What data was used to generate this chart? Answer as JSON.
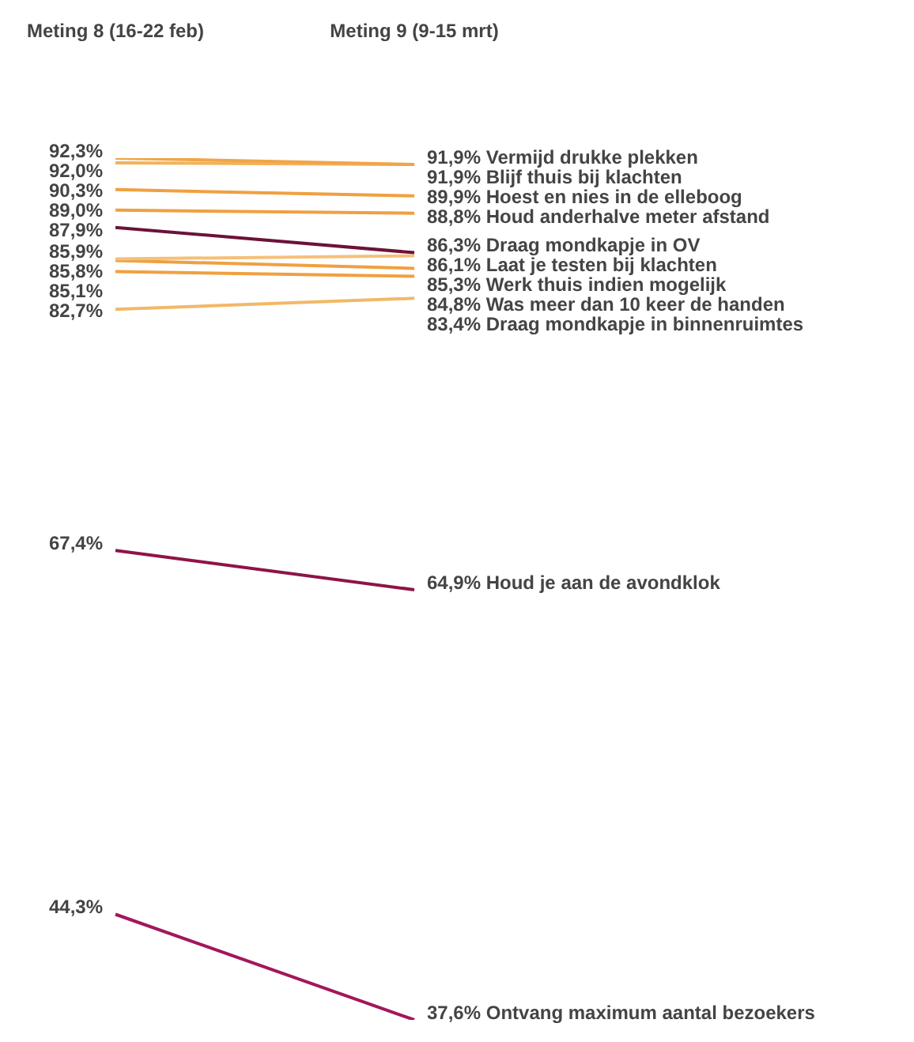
{
  "chart_data": {
    "type": "line",
    "categories": [
      "Meting 8 (16-22 feb)",
      "Meting 9 (9-15 mrt)"
    ],
    "data_labels": true,
    "legend": false,
    "marker": "none",
    "series": [
      {
        "name": "Vermijd drukke plekken",
        "color": "#f0a548",
        "values": [
          92.3,
          91.9
        ],
        "value_labels": [
          "92,3%",
          "91,9%"
        ]
      },
      {
        "name": "Blijf thuis bij klachten",
        "color": "#f3b25a",
        "values": [
          92.0,
          91.9
        ],
        "value_labels": [
          "92,0%",
          "91,9%"
        ]
      },
      {
        "name": "Hoest en nies in de elleboog",
        "color": "#f0a040",
        "values": [
          90.3,
          89.9
        ],
        "value_labels": [
          "90,3%",
          "89,9%"
        ]
      },
      {
        "name": "Houd anderhalve meter afstand",
        "color": "#f0a040",
        "values": [
          89.0,
          88.8
        ],
        "value_labels": [
          "89,0%",
          "88,8%"
        ]
      },
      {
        "name": "Draag mondkapje in OV",
        "color": "#6b1238",
        "values": [
          87.9,
          86.3
        ],
        "value_labels": [
          "87,9%",
          "86,3%"
        ]
      },
      {
        "name": "Laat je testen bij klachten",
        "color": "#f5c07a",
        "values": [
          85.9,
          86.1
        ],
        "value_labels": [
          "85,9%",
          "86,1%"
        ]
      },
      {
        "name": "Werk thuis indien mogelijk",
        "color": "#f0a040",
        "values": [
          85.8,
          85.3
        ],
        "value_labels": [
          "85,8%",
          "85,3%"
        ]
      },
      {
        "name": "Was meer dan 10 keer de handen",
        "color": "#f0a040",
        "values": [
          85.1,
          84.8
        ],
        "value_labels": [
          "85,1%",
          "84,8%"
        ]
      },
      {
        "name": "Draag mondkapje in binnenruimtes",
        "color": "#f2b868",
        "values": [
          82.7,
          83.4
        ],
        "value_labels": [
          "82,7%",
          "83,4%"
        ]
      },
      {
        "name": "Houd je aan de avondklok",
        "color": "#8e1446",
        "values": [
          67.4,
          64.9
        ],
        "value_labels": [
          "67,4%",
          "64,9%"
        ]
      },
      {
        "name": "Ontvang maximum aantal bezoekers",
        "color": "#a3175a",
        "values": [
          44.3,
          37.6
        ],
        "value_labels": [
          "44,3%",
          "37,6%"
        ]
      }
    ]
  }
}
